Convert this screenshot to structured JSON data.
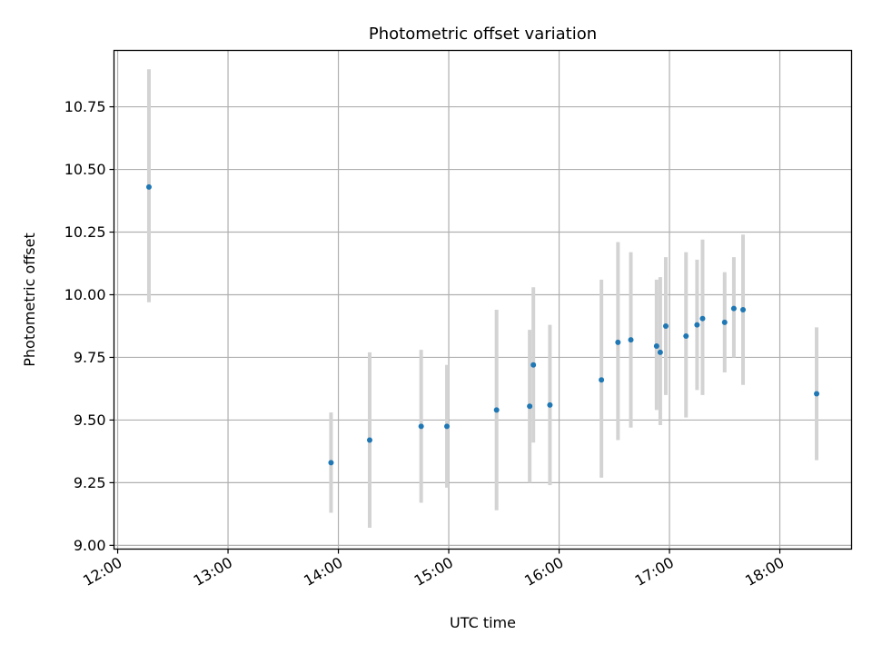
{
  "chart_data": {
    "type": "scatter",
    "title": "Photometric offset variation",
    "xlabel": "UTC time",
    "ylabel": "Photometric offset",
    "x_ticks": [
      "12:00",
      "13:00",
      "14:00",
      "15:00",
      "16:00",
      "17:00",
      "18:00"
    ],
    "y_ticks": [
      "9.00",
      "9.25",
      "9.50",
      "9.75",
      "10.00",
      "10.25",
      "10.50",
      "10.75"
    ],
    "xlim": [
      "11:58",
      "18:39"
    ],
    "ylim": [
      8.985,
      10.975
    ],
    "grid": true,
    "colors": {
      "points": "#1f77b4",
      "errorbars": "#d3d3d3",
      "grid": "#b0b0b0"
    },
    "series": [
      {
        "points": [
          {
            "t": "12:17",
            "y": 10.43,
            "lo": 9.97,
            "hi": 10.9
          },
          {
            "t": "13:56",
            "y": 9.33,
            "lo": 9.13,
            "hi": 9.53
          },
          {
            "t": "14:17",
            "y": 9.42,
            "lo": 9.07,
            "hi": 9.77
          },
          {
            "t": "14:45",
            "y": 9.475,
            "lo": 9.17,
            "hi": 9.78
          },
          {
            "t": "14:59",
            "y": 9.475,
            "lo": 9.23,
            "hi": 9.72
          },
          {
            "t": "15:26",
            "y": 9.54,
            "lo": 9.14,
            "hi": 9.94
          },
          {
            "t": "15:44",
            "y": 9.555,
            "lo": 9.25,
            "hi": 9.86
          },
          {
            "t": "15:46",
            "y": 9.72,
            "lo": 9.41,
            "hi": 10.03
          },
          {
            "t": "15:55",
            "y": 9.56,
            "lo": 9.24,
            "hi": 9.88
          },
          {
            "t": "16:23",
            "y": 9.66,
            "lo": 9.27,
            "hi": 10.06
          },
          {
            "t": "16:32",
            "y": 9.81,
            "lo": 9.42,
            "hi": 10.21
          },
          {
            "t": "16:39",
            "y": 9.82,
            "lo": 9.47,
            "hi": 10.17
          },
          {
            "t": "16:53",
            "y": 9.795,
            "lo": 9.54,
            "hi": 10.06
          },
          {
            "t": "16:55",
            "y": 9.77,
            "lo": 9.48,
            "hi": 10.07
          },
          {
            "t": "16:58",
            "y": 9.875,
            "lo": 9.6,
            "hi": 10.15
          },
          {
            "t": "17:09",
            "y": 9.835,
            "lo": 9.51,
            "hi": 10.17
          },
          {
            "t": "17:15",
            "y": 9.88,
            "lo": 9.62,
            "hi": 10.14
          },
          {
            "t": "17:18",
            "y": 9.905,
            "lo": 9.6,
            "hi": 10.22
          },
          {
            "t": "17:30",
            "y": 9.89,
            "lo": 9.69,
            "hi": 10.09
          },
          {
            "t": "17:35",
            "y": 9.945,
            "lo": 9.75,
            "hi": 10.15
          },
          {
            "t": "17:40",
            "y": 9.94,
            "lo": 9.64,
            "hi": 10.24
          },
          {
            "t": "18:20",
            "y": 9.605,
            "lo": 9.34,
            "hi": 9.87
          }
        ]
      }
    ]
  }
}
